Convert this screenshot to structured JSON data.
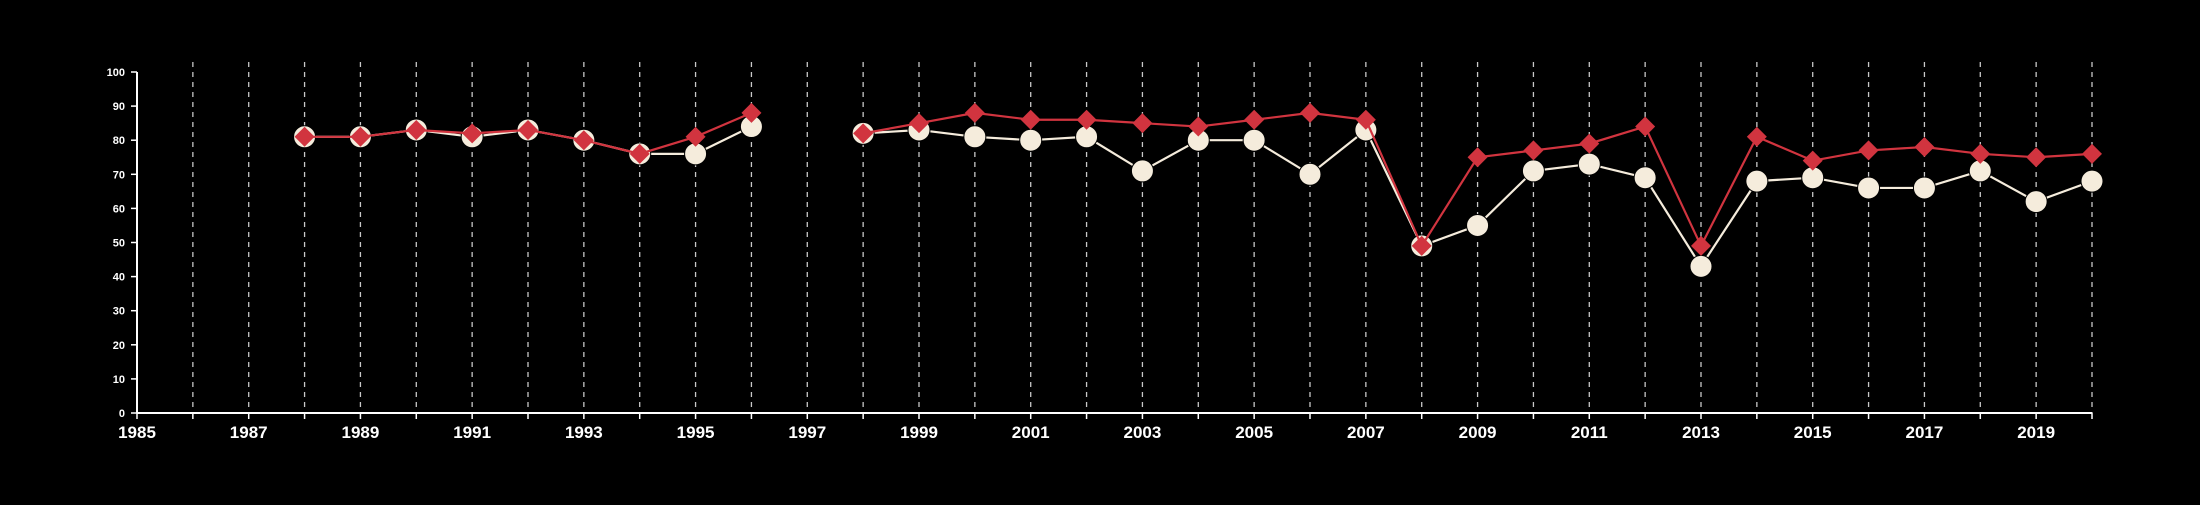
{
  "chart_data": {
    "type": "line",
    "title": "",
    "xlabel": "",
    "ylabel": "",
    "xlim": [
      1985,
      2020
    ],
    "ylim": [
      0,
      100
    ],
    "x_ticks": [
      1985,
      1987,
      1989,
      1991,
      1993,
      1995,
      1997,
      1999,
      2001,
      2003,
      2005,
      2007,
      2009,
      2011,
      2013,
      2015,
      2017,
      2019
    ],
    "y_ticks": [
      0,
      10,
      20,
      30,
      40,
      50,
      60,
      70,
      80,
      90,
      100
    ],
    "grid": "vertical dashed lines at every year",
    "background": "#000000",
    "series": [
      {
        "color": "#f5ecdc",
        "marker": "circle",
        "x": [
          1988,
          1989,
          1990,
          1991,
          1992,
          1993,
          1994,
          1995,
          1996,
          null,
          1998,
          1999,
          2000,
          2001,
          2002,
          2003,
          2004,
          2005,
          2006,
          2007,
          2008,
          2009,
          2010,
          2011,
          2012,
          2013,
          2014,
          2015,
          2016,
          2017,
          2018,
          2019,
          2020
        ],
        "values": [
          81,
          81,
          83,
          81,
          83,
          80,
          76,
          76,
          84,
          null,
          82,
          83,
          81,
          80,
          81,
          71,
          80,
          80,
          70,
          83,
          49,
          55,
          71,
          73,
          69,
          43,
          68,
          69,
          66,
          66,
          71,
          62,
          68
        ]
      },
      {
        "color": "#d1343f",
        "marker": "diamond",
        "x": [
          1988,
          1989,
          1990,
          1991,
          1992,
          1993,
          1994,
          1995,
          1996,
          null,
          1998,
          1999,
          2000,
          2001,
          2002,
          2003,
          2004,
          2005,
          2006,
          2007,
          2008,
          2009,
          2010,
          2011,
          2012,
          2013,
          2014,
          2015,
          2016,
          2017,
          2018,
          2019,
          2020
        ],
        "values": [
          81,
          81,
          83,
          82,
          83,
          80,
          76,
          81,
          88,
          null,
          82,
          85,
          88,
          86,
          86,
          85,
          84,
          86,
          88,
          86,
          49,
          75,
          77,
          79,
          84,
          49,
          81,
          74,
          77,
          78,
          76,
          75,
          76
        ]
      }
    ]
  }
}
